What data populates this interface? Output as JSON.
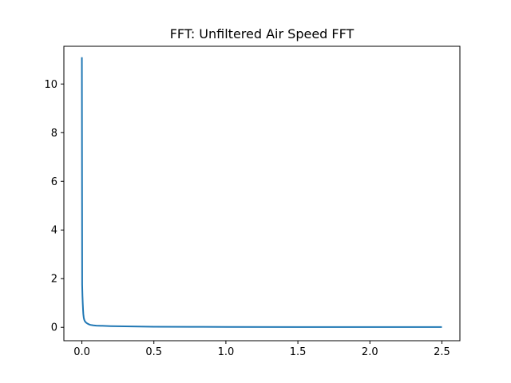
{
  "chart_data": {
    "type": "line",
    "title": "FFT: Unfiltered Air Speed FFT",
    "xlabel": "",
    "ylabel": "",
    "xlim": [
      -0.125,
      2.625
    ],
    "ylim": [
      -0.55,
      11.55
    ],
    "xticks": [
      {
        "value": 0.0,
        "label": "0.0"
      },
      {
        "value": 0.5,
        "label": "0.5"
      },
      {
        "value": 1.0,
        "label": "1.0"
      },
      {
        "value": 1.5,
        "label": "1.5"
      },
      {
        "value": 2.0,
        "label": "2.0"
      },
      {
        "value": 2.5,
        "label": "2.5"
      }
    ],
    "yticks": [
      {
        "value": 0,
        "label": "0"
      },
      {
        "value": 2,
        "label": "2"
      },
      {
        "value": 4,
        "label": "4"
      },
      {
        "value": 6,
        "label": "6"
      },
      {
        "value": 8,
        "label": "8"
      },
      {
        "value": 10,
        "label": "10"
      }
    ],
    "grid": false,
    "legend": "none",
    "series": [
      {
        "color": "#1f77b4",
        "x": [
          0.0,
          0.002,
          0.004,
          0.006,
          0.008,
          0.01,
          0.013,
          0.016,
          0.02,
          0.025,
          0.03,
          0.035,
          0.04,
          0.05,
          0.06,
          0.08,
          0.1,
          0.15,
          0.2,
          0.25,
          0.3,
          0.4,
          0.5,
          0.75,
          1.0,
          1.5,
          2.0,
          2.5
        ],
        "y": [
          11.1,
          1.75,
          1.3,
          1.0,
          0.75,
          0.55,
          0.4,
          0.32,
          0.26,
          0.22,
          0.19,
          0.17,
          0.15,
          0.12,
          0.1,
          0.08,
          0.07,
          0.06,
          0.05,
          0.045,
          0.04,
          0.03,
          0.025,
          0.02,
          0.015,
          0.012,
          0.01,
          0.01
        ]
      }
    ]
  }
}
